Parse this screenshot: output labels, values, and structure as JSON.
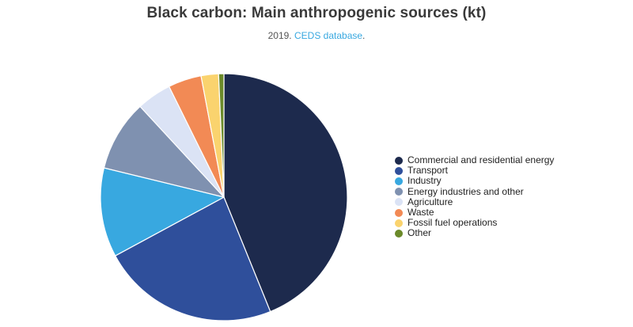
{
  "chart_data": {
    "type": "pie",
    "title": "Black carbon: Main anthropogenic sources (kt)",
    "subtitle_prefix": "2019. ",
    "subtitle_link": "CEDS database",
    "subtitle_suffix": ".",
    "legend_position": "right",
    "categories": [
      "Commercial and residential energy",
      "Transport",
      "Industry",
      "Energy industries and other",
      "Agriculture",
      "Waste",
      "Fossil fuel operations",
      "Other"
    ],
    "values": [
      44.3,
      23.5,
      11.8,
      9.4,
      4.6,
      4.4,
      2.3,
      0.7
    ],
    "colors": [
      "#1d2a4d",
      "#2f4f9b",
      "#38a8e0",
      "#7f91b0",
      "#dbe3f5",
      "#f28a55",
      "#fad36e",
      "#6b8a2a"
    ]
  }
}
